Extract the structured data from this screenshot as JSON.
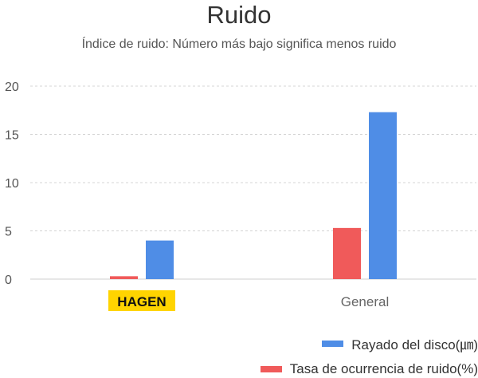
{
  "chart_data": {
    "type": "bar",
    "title": "Ruido",
    "subtitle": "Índice de ruido: Número más bajo significa menos ruido",
    "categories": [
      "HAGEN",
      "General"
    ],
    "highlight_category": {
      "name": "HAGEN",
      "background": "#ffd400"
    },
    "series": [
      {
        "name": "Tasa de ocurrencia de ruido(%)",
        "color": "#f05a5a",
        "values": [
          0.3,
          5.3
        ]
      },
      {
        "name": "Rayado del disco(㎛)",
        "color": "#4f8de6",
        "values": [
          4.0,
          17.3
        ]
      }
    ],
    "ylim": [
      0,
      20
    ],
    "yticks": [
      "0",
      "5",
      "10",
      "15",
      "20"
    ],
    "grid": true,
    "legend_position": "bottom-right",
    "xlabel": "",
    "ylabel": ""
  }
}
